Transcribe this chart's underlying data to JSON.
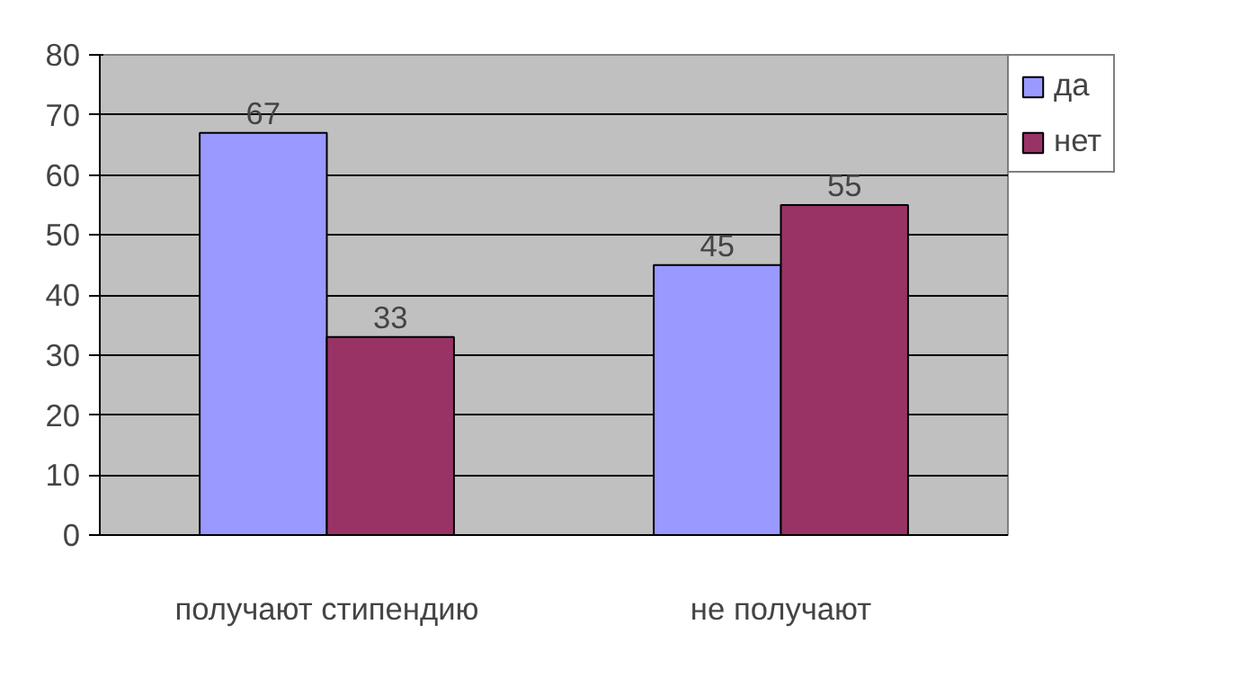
{
  "chart_data": {
    "type": "bar",
    "categories": [
      "получают стипендию",
      "не получают"
    ],
    "series": [
      {
        "name": "да",
        "color": "#9999ff",
        "values": [
          67,
          45
        ]
      },
      {
        "name": "нет",
        "color": "#993366",
        "values": [
          33,
          55
        ]
      }
    ],
    "ylim": [
      0,
      80
    ],
    "yticks": [
      0,
      10,
      20,
      30,
      40,
      50,
      60,
      70,
      80
    ],
    "grid": "y",
    "legend": "right",
    "data_labels": true
  }
}
